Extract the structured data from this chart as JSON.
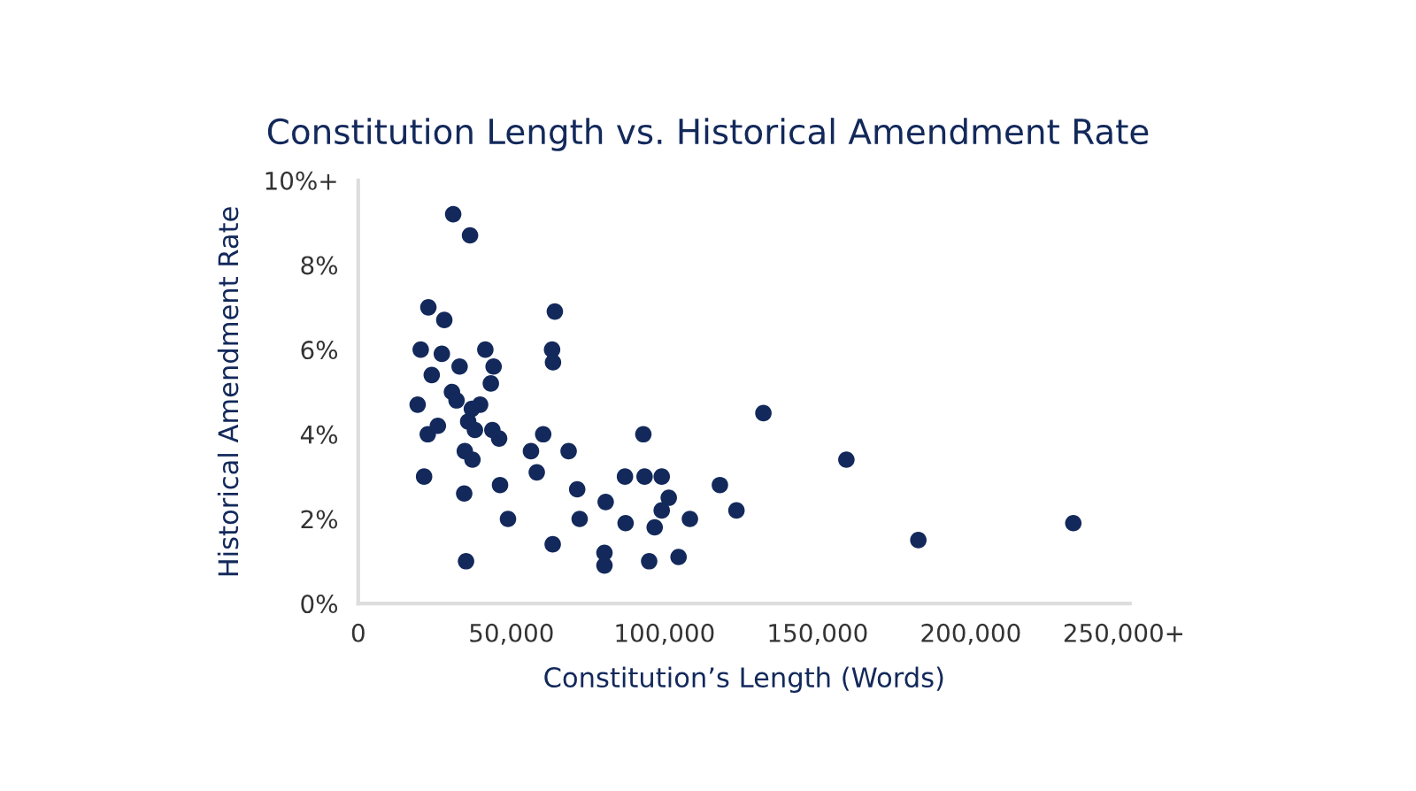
{
  "chart_data": {
    "type": "scatter",
    "title": "Constitution Length vs. Historical Amendment Rate",
    "xlabel": "Constitution’s Length (Words)",
    "ylabel": "Historical Amendment Rate",
    "xlim": [
      0,
      252000
    ],
    "xticks": [
      0,
      {
        "value": 50000,
        "label": "50,000"
      },
      {
        "value": 100000,
        "label": "100,000"
      },
      {
        "value": 150000,
        "label": "150,000"
      },
      {
        "value": 200000,
        "label": "200,000"
      },
      {
        "value": 250000,
        "label": "250,000+"
      }
    ],
    "ylim": [
      0,
      10
    ],
    "yticks": [
      {
        "value": 0,
        "label": "0%"
      },
      {
        "value": 2,
        "label": "2%"
      },
      {
        "value": 4,
        "label": "4%"
      },
      {
        "value": 6,
        "label": "6%"
      },
      {
        "value": 8,
        "label": "8%"
      },
      {
        "value": 10,
        "label": "10%+"
      }
    ],
    "grid": false,
    "marker": "circle",
    "series": [
      {
        "color": "#13295b",
        "x": [
          31000,
          36500,
          22900,
          28100,
          20400,
          27300,
          41500,
          33100,
          44200,
          24000,
          43300,
          30600,
          32100,
          19400,
          39800,
          37100,
          35900,
          22700,
          26000,
          38100,
          43800,
          46000,
          34800,
          37300,
          21500,
          46300,
          34600,
          48900,
          35200,
          64200,
          63300,
          63600,
          60400,
          56400,
          58300,
          68700,
          71500,
          72300,
          63500,
          80800,
          80400,
          80400,
          93100,
          87100,
          93500,
          99100,
          101400,
          99100,
          87300,
          96800,
          108300,
          95000,
          104600,
          118100,
          123500,
          132300,
          159400,
          182900,
          233500
        ],
        "values": [
          9.2,
          8.7,
          7.0,
          6.7,
          6.0,
          5.9,
          6.0,
          5.6,
          5.6,
          5.4,
          5.2,
          5.0,
          4.8,
          4.7,
          4.7,
          4.6,
          4.3,
          4.0,
          4.2,
          4.1,
          4.1,
          3.9,
          3.6,
          3.4,
          3.0,
          2.8,
          2.6,
          2.0,
          1.0,
          6.9,
          6.0,
          5.7,
          4.0,
          3.6,
          3.1,
          3.6,
          2.7,
          2.0,
          1.4,
          2.4,
          1.2,
          0.9,
          4.0,
          3.0,
          3.0,
          3.0,
          2.5,
          2.2,
          1.9,
          1.8,
          2.0,
          1.0,
          1.1,
          2.8,
          2.2,
          4.5,
          3.4,
          1.5,
          1.9
        ]
      }
    ]
  }
}
